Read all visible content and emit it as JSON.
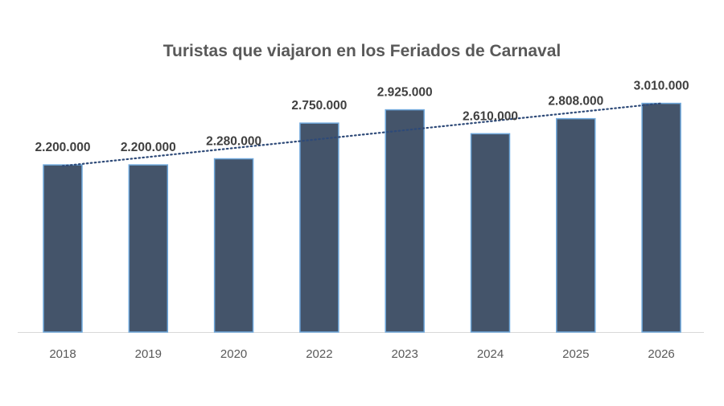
{
  "chart_data": {
    "type": "bar",
    "title": "Turistas que viajaron en los Feriados de Carnaval",
    "categories": [
      "2018",
      "2019",
      "2020",
      "2022",
      "2023",
      "2024",
      "2025",
      "2026"
    ],
    "values": [
      2200000,
      2200000,
      2280000,
      2750000,
      2925000,
      2610000,
      2808000,
      3010000
    ],
    "data_labels": [
      "2.200.000",
      "2.200.000",
      "2.280.000",
      "2.750.000",
      "2.925.000",
      "2.610.000",
      "2.808.000",
      "3.010.000"
    ],
    "xlabel": "",
    "ylabel": "",
    "ylim": [
      0,
      3010000
    ],
    "y_axis_visible": false,
    "grid": false,
    "trendline": {
      "type": "linear",
      "style": "dotted",
      "color": "#2E4A78"
    },
    "colors": {
      "bar": "#44546A",
      "bar_border": "#6FA8DC",
      "axis": "#D9D9D9"
    }
  }
}
